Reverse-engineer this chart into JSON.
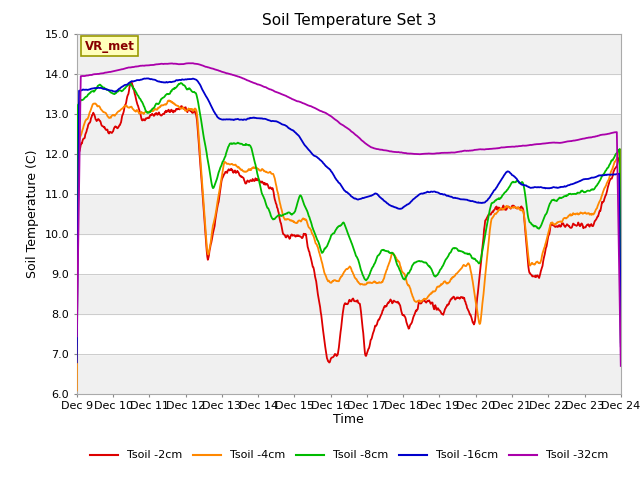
{
  "title": "Soil Temperature Set 3",
  "xlabel": "Time",
  "ylabel": "Soil Temperature (C)",
  "ylim": [
    6.0,
    15.0
  ],
  "yticks": [
    6.0,
    7.0,
    8.0,
    9.0,
    10.0,
    11.0,
    12.0,
    13.0,
    14.0,
    15.0
  ],
  "bg_color": "#ffffff",
  "stripe_colors": [
    "#f0f0f0",
    "#ffffff"
  ],
  "legend_label": "VR_met",
  "series_labels": [
    "Tsoil -2cm",
    "Tsoil -4cm",
    "Tsoil -8cm",
    "Tsoil -16cm",
    "Tsoil -32cm"
  ],
  "series_colors": [
    "#dd0000",
    "#ff8800",
    "#00bb00",
    "#0000cc",
    "#aa00aa"
  ],
  "xtick_labels": [
    "Dec 9",
    "Dec 10",
    "Dec 11",
    "Dec 12",
    "Dec 13",
    "Dec 14",
    "Dec 15",
    "Dec 16",
    "Dec 17",
    "Dec 18",
    "Dec 19",
    "Dec 20",
    "Dec 21",
    "Dec 22",
    "Dec 23",
    "Dec 24"
  ],
  "n_points": 960,
  "figsize": [
    6.4,
    4.8
  ],
  "dpi": 100
}
